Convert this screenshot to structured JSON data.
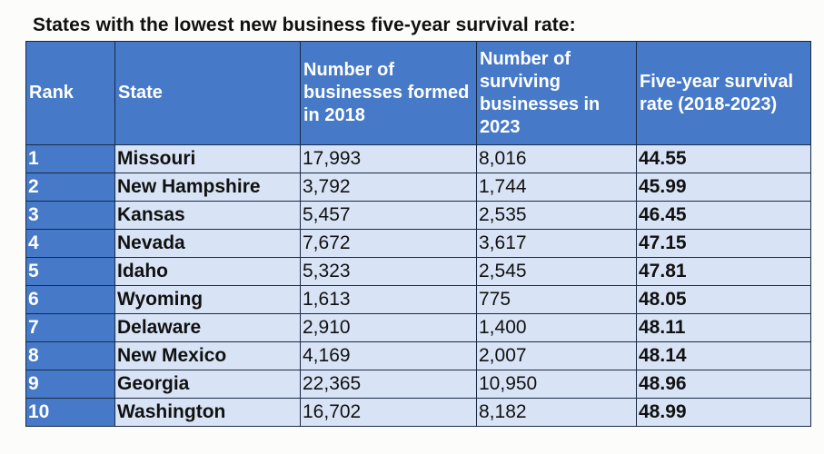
{
  "title": "States with the lowest new business five-year survival rate:",
  "columns": {
    "rank": "Rank",
    "state": "State",
    "formed": "Number of businesses formed in 2018",
    "surviving": "Number of surviving businesses in 2023",
    "rate": "Five-year survival rate (2018-2023)"
  },
  "rows": [
    {
      "rank": "1",
      "state": "Missouri",
      "formed": "17,993",
      "surviving": "8,016",
      "rate": "44.55"
    },
    {
      "rank": "2",
      "state": "New Hampshire",
      "formed": "3,792",
      "surviving": "1,744",
      "rate": "45.99"
    },
    {
      "rank": "3",
      "state": "Kansas",
      "formed": "5,457",
      "surviving": "2,535",
      "rate": "46.45"
    },
    {
      "rank": "4",
      "state": "Nevada",
      "formed": "7,672",
      "surviving": "3,617",
      "rate": "47.15"
    },
    {
      "rank": "5",
      "state": "Idaho",
      "formed": "5,323",
      "surviving": "2,545",
      "rate": "47.81"
    },
    {
      "rank": "6",
      "state": "Wyoming",
      "formed": "1,613",
      "surviving": "775",
      "rate": "48.05"
    },
    {
      "rank": "7",
      "state": "Delaware",
      "formed": "2,910",
      "surviving": "1,400",
      "rate": "48.11"
    },
    {
      "rank": "8",
      "state": "New Mexico",
      "formed": "4,169",
      "surviving": "2,007",
      "rate": "48.14"
    },
    {
      "rank": "9",
      "state": "Georgia",
      "formed": "22,365",
      "surviving": "10,950",
      "rate": "48.96"
    },
    {
      "rank": "10",
      "state": "Washington",
      "formed": "16,702",
      "surviving": "8,182",
      "rate": "48.99"
    }
  ],
  "colors": {
    "header_bg": "#4679c8",
    "cell_bg": "#d8e4f6",
    "border": "#1a2a44"
  }
}
